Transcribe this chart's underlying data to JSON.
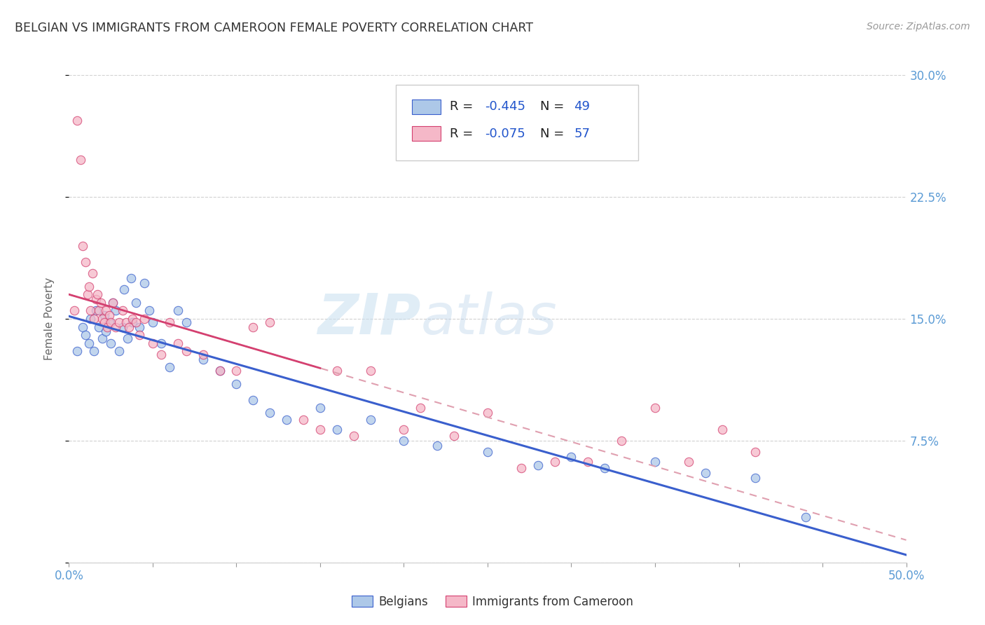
{
  "title": "BELGIAN VS IMMIGRANTS FROM CAMEROON FEMALE POVERTY CORRELATION CHART",
  "source": "Source: ZipAtlas.com",
  "ylabel": "Female Poverty",
  "xlim": [
    0.0,
    0.5
  ],
  "ylim": [
    0.0,
    0.3
  ],
  "yticks": [
    0.0,
    0.075,
    0.15,
    0.225,
    0.3
  ],
  "ytick_labels_right": [
    "",
    "7.5%",
    "15.0%",
    "22.5%",
    "30.0%"
  ],
  "xticks": [
    0.0,
    0.05,
    0.1,
    0.15,
    0.2,
    0.25,
    0.3,
    0.35,
    0.4,
    0.45,
    0.5
  ],
  "xtick_labels": [
    "0.0%",
    "",
    "",
    "",
    "",
    "",
    "",
    "",
    "",
    "",
    "50.0%"
  ],
  "series1_label": "Belgians",
  "series1_color": "#adc8e8",
  "series1_R": "-0.445",
  "series1_N": "49",
  "series2_label": "Immigrants from Cameroon",
  "series2_color": "#f5b8c8",
  "series2_R": "-0.075",
  "series2_N": "57",
  "trend1_color": "#3a5fcd",
  "trend2_color": "#d44070",
  "trend2_dash_color": "#e0a0b0",
  "title_color": "#333333",
  "axis_label_color": "#666666",
  "tick_color": "#5b9bd5",
  "watermark_zip": "ZIP",
  "watermark_atlas": "atlas",
  "background_color": "#ffffff",
  "series1_x": [
    0.005,
    0.008,
    0.01,
    0.012,
    0.013,
    0.015,
    0.016,
    0.018,
    0.02,
    0.021,
    0.022,
    0.024,
    0.025,
    0.026,
    0.028,
    0.03,
    0.032,
    0.033,
    0.035,
    0.037,
    0.038,
    0.04,
    0.042,
    0.045,
    0.048,
    0.05,
    0.055,
    0.06,
    0.065,
    0.07,
    0.08,
    0.09,
    0.1,
    0.11,
    0.12,
    0.13,
    0.15,
    0.16,
    0.18,
    0.2,
    0.22,
    0.25,
    0.28,
    0.3,
    0.32,
    0.35,
    0.38,
    0.41,
    0.44
  ],
  "series1_y": [
    0.13,
    0.145,
    0.14,
    0.135,
    0.15,
    0.13,
    0.155,
    0.145,
    0.138,
    0.152,
    0.142,
    0.148,
    0.135,
    0.16,
    0.155,
    0.13,
    0.145,
    0.168,
    0.138,
    0.175,
    0.148,
    0.16,
    0.145,
    0.172,
    0.155,
    0.148,
    0.135,
    0.12,
    0.155,
    0.148,
    0.125,
    0.118,
    0.11,
    0.1,
    0.092,
    0.088,
    0.095,
    0.082,
    0.088,
    0.075,
    0.072,
    0.068,
    0.06,
    0.065,
    0.058,
    0.062,
    0.055,
    0.052,
    0.028
  ],
  "series2_x": [
    0.003,
    0.005,
    0.007,
    0.008,
    0.01,
    0.011,
    0.012,
    0.013,
    0.014,
    0.015,
    0.016,
    0.017,
    0.018,
    0.019,
    0.02,
    0.021,
    0.022,
    0.023,
    0.024,
    0.025,
    0.026,
    0.028,
    0.03,
    0.032,
    0.034,
    0.036,
    0.038,
    0.04,
    0.042,
    0.045,
    0.05,
    0.055,
    0.06,
    0.065,
    0.07,
    0.08,
    0.09,
    0.1,
    0.11,
    0.12,
    0.14,
    0.15,
    0.16,
    0.17,
    0.18,
    0.2,
    0.21,
    0.23,
    0.25,
    0.27,
    0.29,
    0.31,
    0.33,
    0.35,
    0.37,
    0.39,
    0.41
  ],
  "series2_y": [
    0.155,
    0.272,
    0.248,
    0.195,
    0.185,
    0.165,
    0.17,
    0.155,
    0.178,
    0.15,
    0.162,
    0.165,
    0.155,
    0.16,
    0.15,
    0.148,
    0.155,
    0.145,
    0.152,
    0.148,
    0.16,
    0.145,
    0.148,
    0.155,
    0.148,
    0.145,
    0.15,
    0.148,
    0.14,
    0.15,
    0.135,
    0.128,
    0.148,
    0.135,
    0.13,
    0.128,
    0.118,
    0.118,
    0.145,
    0.148,
    0.088,
    0.082,
    0.118,
    0.078,
    0.118,
    0.082,
    0.095,
    0.078,
    0.092,
    0.058,
    0.062,
    0.062,
    0.075,
    0.095,
    0.062,
    0.082,
    0.068
  ]
}
